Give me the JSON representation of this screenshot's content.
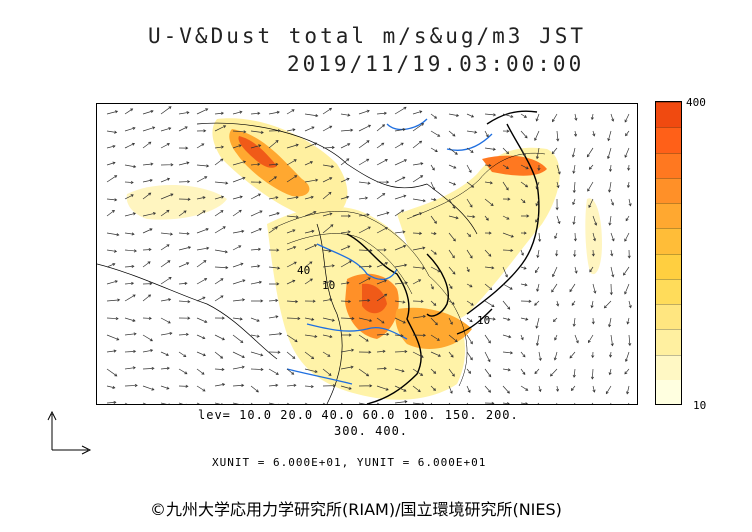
{
  "title": {
    "line1": "U-V&Dust total m/s&ug/m3 JST",
    "line2": "2019/11/19.03:00:00"
  },
  "colorbar": {
    "max_label": "400",
    "min_label": "10",
    "colors": [
      "#ffffe0",
      "#fff8c4",
      "#fff0a0",
      "#ffe680",
      "#ffdc5a",
      "#ffcf40",
      "#ffbd38",
      "#ffa830",
      "#ff9028",
      "#ff7820",
      "#ff6018",
      "#f04a10"
    ]
  },
  "levels": {
    "line1": "lev= 10.0 20.0 40.0 60.0 100. 150. 200.",
    "line2": "300. 400."
  },
  "units": "XUNIT = 6.000E+01, YUNIT = 6.000E+01",
  "copyright": "©九州大学応用力学研究所(RIAM)/国立環境研究所(NIES)",
  "map": {
    "contour_label_a": "40",
    "contour_label_b": "10",
    "contour_label_c": "10"
  },
  "colors": {
    "coast": "#000000",
    "river": "#1f6fe0",
    "vector": "#333333"
  }
}
